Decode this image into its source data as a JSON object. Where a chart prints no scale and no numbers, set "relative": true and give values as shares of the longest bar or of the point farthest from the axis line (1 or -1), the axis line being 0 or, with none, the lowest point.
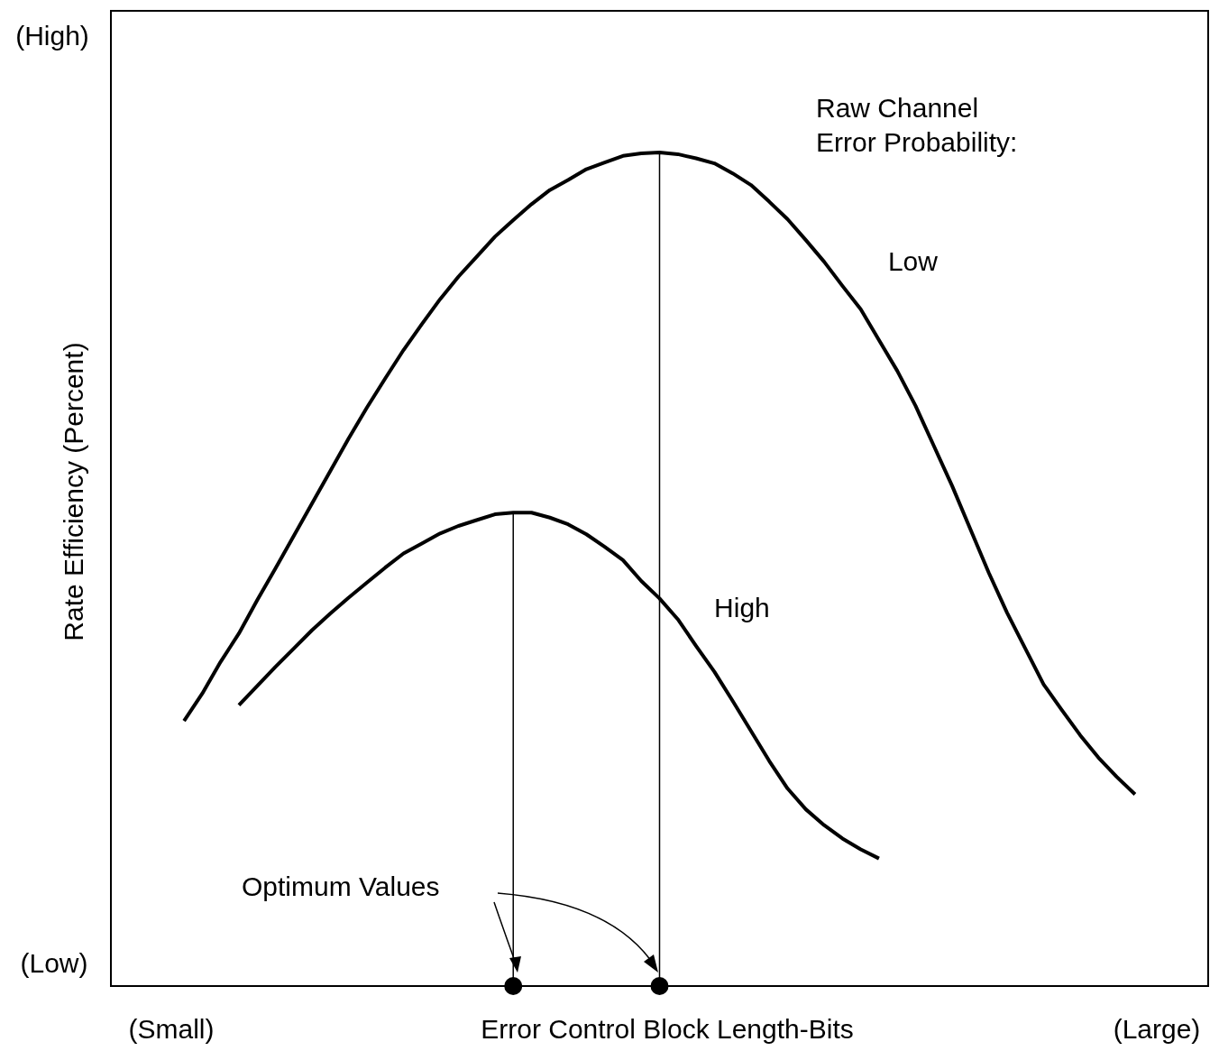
{
  "chart_data": {
    "type": "line",
    "relative": true,
    "xlabel": "Error Control Block Length-Bits",
    "ylabel": "Rate Efficiency (Percent)",
    "legend_title": "Raw Channel\nError Probability:",
    "legend": false,
    "categories": [
      null,
      null,
      null,
      null,
      null,
      null,
      null,
      null,
      null,
      null,
      null,
      null,
      null,
      null,
      null,
      null,
      null,
      null,
      null,
      null,
      null,
      null,
      null,
      null,
      null,
      null,
      null,
      null,
      null,
      null,
      null,
      null,
      null,
      null,
      null,
      null,
      null,
      null,
      null,
      null,
      null,
      null,
      null,
      null,
      null,
      null,
      null,
      null,
      null,
      null,
      null,
      null,
      null,
      null,
      null,
      null,
      null,
      null,
      null,
      null,
      null
    ],
    "series": [
      {
        "name": "Low",
        "color": "#000000",
        "values": [
          null,
          null,
          null,
          null,
          0.318,
          0.351,
          0.389,
          0.423,
          0.463,
          0.501,
          0.54,
          0.579,
          0.618,
          0.657,
          0.694,
          0.729,
          0.763,
          0.794,
          0.824,
          0.851,
          0.875,
          0.899,
          0.919,
          0.938,
          0.955,
          0.967,
          0.98,
          0.988,
          0.996,
          0.999,
          1,
          0.998,
          0.993,
          0.987,
          0.975,
          0.961,
          0.941,
          0.92,
          0.895,
          0.869,
          0.84,
          0.812,
          0.775,
          0.738,
          0.696,
          0.648,
          0.6,
          0.548,
          0.496,
          0.448,
          0.405,
          0.362,
          0.331,
          0.301,
          0.274,
          0.251,
          0.23,
          null,
          null,
          null,
          null
        ]
      },
      {
        "name": "High",
        "color": "#000000",
        "values": [
          null,
          null,
          null,
          null,
          null,
          null,
          null,
          0.337,
          0.36,
          0.383,
          0.405,
          0.427,
          0.447,
          0.466,
          0.484,
          0.502,
          0.519,
          0.531,
          0.543,
          0.552,
          0.559,
          0.566,
          0.568,
          0.568,
          0.562,
          0.554,
          0.542,
          0.527,
          0.511,
          0.486,
          0.465,
          0.44,
          0.408,
          0.377,
          0.342,
          0.306,
          0.27,
          0.237,
          0.212,
          0.193,
          0.177,
          0.164,
          0.153,
          null,
          null,
          null,
          null,
          null,
          null,
          null,
          null,
          null,
          null,
          null,
          null,
          null,
          null,
          null,
          null,
          null,
          null
        ]
      }
    ],
    "annotations": [
      "(High)",
      "(Low)",
      "(Small)",
      "(Large)",
      "Optimum Values"
    ]
  }
}
